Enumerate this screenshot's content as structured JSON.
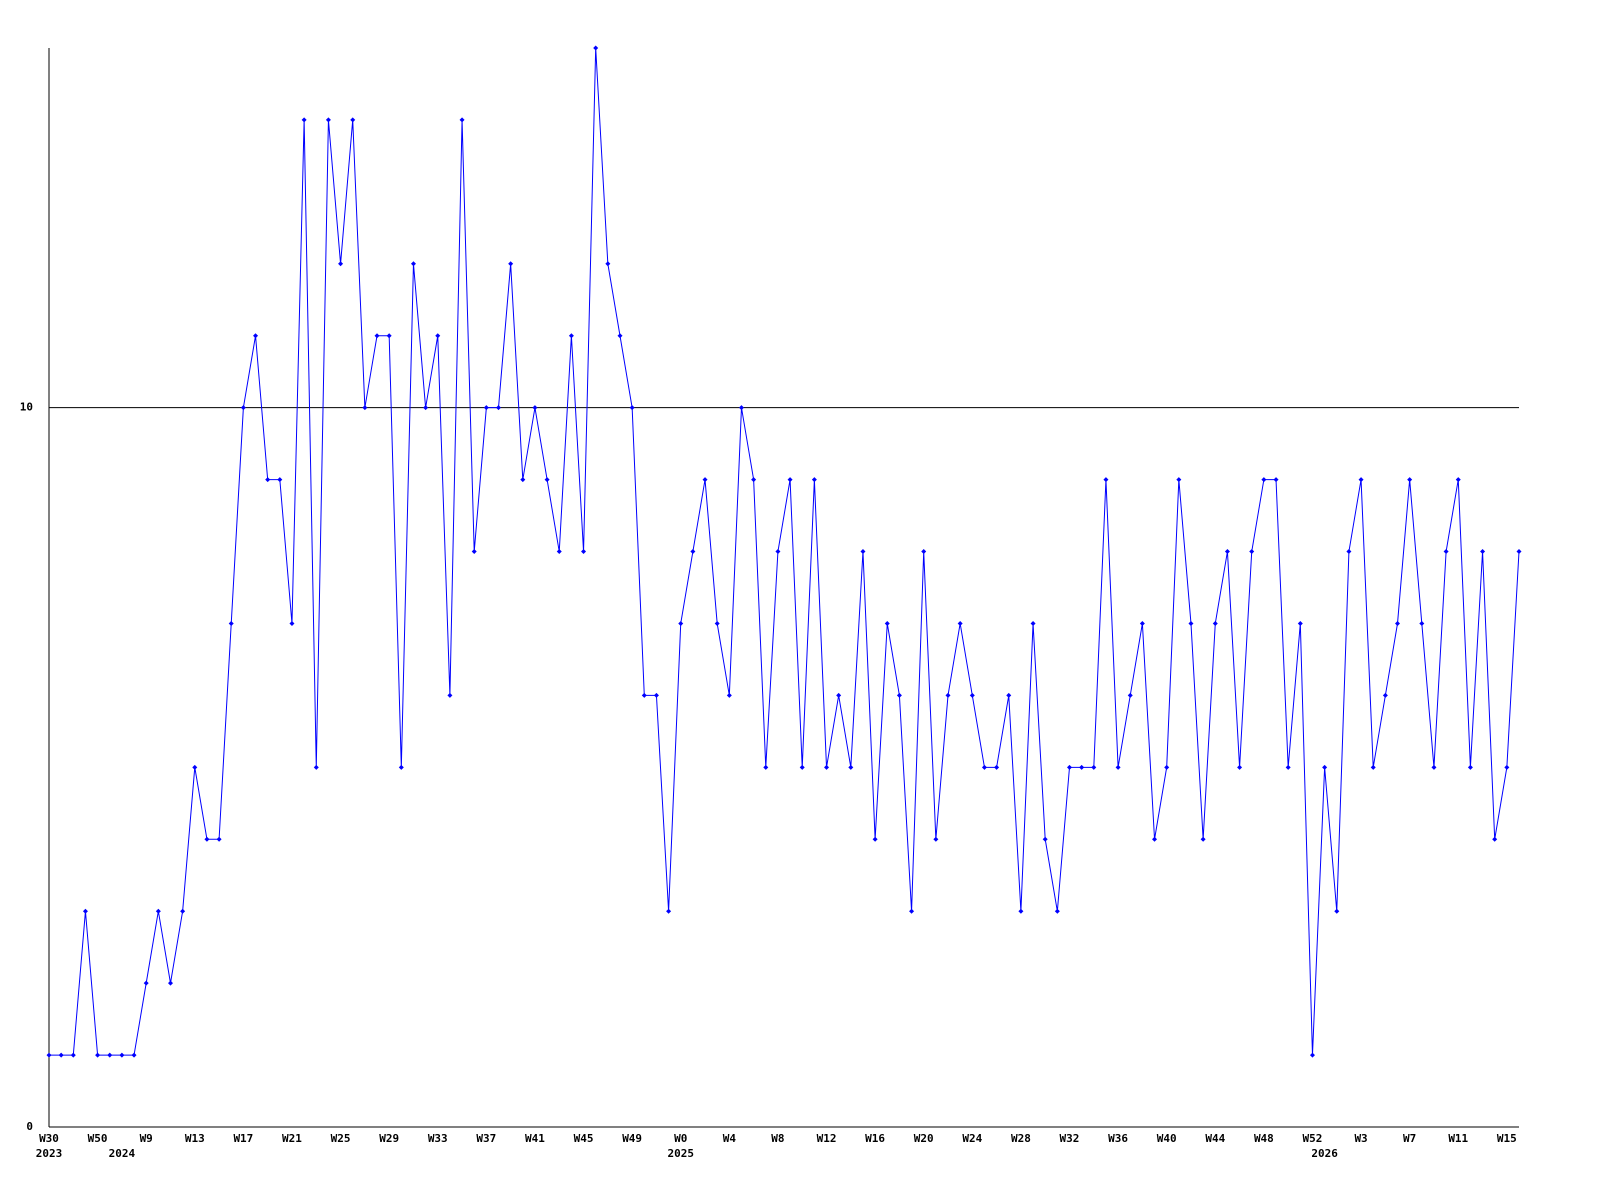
{
  "chart_data": {
    "type": "line",
    "categories": [
      "W30",
      null,
      null,
      null,
      "W50",
      null,
      null,
      null,
      "W9",
      null,
      null,
      null,
      "W13",
      null,
      null,
      null,
      "W17",
      null,
      null,
      null,
      "W21",
      null,
      null,
      null,
      "W25",
      null,
      null,
      null,
      "W29",
      null,
      null,
      null,
      "W33",
      null,
      null,
      null,
      "W37",
      null,
      null,
      null,
      "W41",
      null,
      null,
      null,
      "W45",
      null,
      null,
      null,
      "W49",
      null,
      null,
      null,
      "W0",
      null,
      null,
      null,
      "W4",
      null,
      null,
      null,
      "W8",
      null,
      null,
      null,
      "W12",
      null,
      null,
      null,
      "W16",
      null,
      null,
      null,
      "W20",
      null,
      null,
      null,
      "W24",
      null,
      null,
      null,
      "W28",
      null,
      null,
      null,
      "W32",
      null,
      null,
      null,
      "W36",
      null,
      null,
      null,
      "W40",
      null,
      null,
      null,
      "W44",
      null,
      null,
      null,
      "W48",
      null,
      null,
      null,
      "W52",
      null,
      null,
      null,
      "W3",
      null,
      null,
      null,
      "W7",
      null,
      null,
      null,
      "W11",
      null,
      null,
      null,
      "W15",
      null
    ],
    "year_labels": [
      "2023",
      null,
      null,
      null,
      null,
      null,
      "2024",
      null,
      null,
      null,
      null,
      null,
      null,
      null,
      null,
      null,
      null,
      null,
      null,
      null,
      null,
      null,
      null,
      null,
      null,
      null,
      null,
      null,
      null,
      null,
      null,
      null,
      null,
      null,
      null,
      null,
      null,
      null,
      null,
      null,
      null,
      null,
      null,
      null,
      null,
      null,
      null,
      null,
      null,
      null,
      null,
      null,
      "2025",
      null,
      null,
      null,
      null,
      null,
      null,
      null,
      null,
      null,
      null,
      null,
      null,
      null,
      null,
      null,
      null,
      null,
      null,
      null,
      null,
      null,
      null,
      null,
      null,
      null,
      null,
      null,
      null,
      null,
      null,
      null,
      null,
      null,
      null,
      null,
      null,
      null,
      null,
      null,
      null,
      null,
      null,
      null,
      null,
      null,
      null,
      null,
      null,
      null,
      null,
      null,
      null,
      "2026",
      null,
      null,
      null,
      null,
      null,
      null,
      null,
      null,
      null,
      null,
      null,
      null,
      null,
      null,
      null,
      null
    ],
    "series": [
      {
        "color": "#0000ff",
        "values": [
          1,
          1,
          1,
          3,
          1,
          1,
          1,
          1,
          2,
          3,
          2,
          3,
          5,
          4,
          4,
          7,
          10,
          11,
          9,
          9,
          7,
          14,
          5,
          14,
          12,
          14,
          10,
          11,
          11,
          5,
          12,
          10,
          11,
          6,
          14,
          8,
          10,
          10,
          12,
          9,
          10,
          9,
          8,
          11,
          8,
          15,
          12,
          11,
          10,
          6,
          6,
          3,
          7,
          8,
          9,
          7,
          6,
          10,
          9,
          5,
          8,
          9,
          5,
          9,
          5,
          6,
          5,
          8,
          4,
          7,
          6,
          3,
          8,
          4,
          6,
          7,
          6,
          5,
          5,
          6,
          3,
          7,
          4,
          3,
          5,
          5,
          5,
          9,
          5,
          6,
          7,
          4,
          5,
          9,
          7,
          4,
          7,
          8,
          5,
          8,
          9,
          9,
          5,
          7,
          1,
          5,
          3,
          8,
          9,
          5,
          6,
          7,
          9,
          7,
          5,
          8,
          9,
          5,
          8,
          4,
          5,
          8
        ]
      }
    ],
    "ylim": [
      0,
      15
    ],
    "yticks": [
      0,
      10
    ],
    "grid": true
  }
}
